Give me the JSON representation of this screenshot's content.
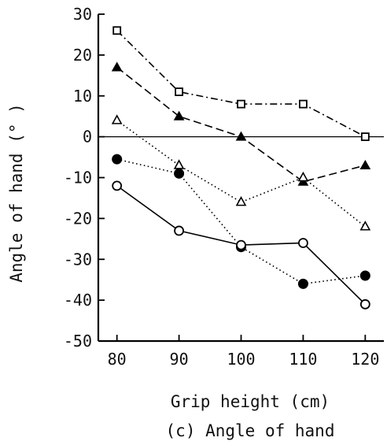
{
  "chart_data": {
    "type": "line",
    "title": "",
    "caption": "(c) Angle of hand",
    "xlabel": "Grip height (cm)",
    "ylabel": "Angle of hand (° )",
    "x": [
      80,
      90,
      100,
      110,
      120
    ],
    "x_tick_labels": [
      "80",
      "90",
      "100",
      "110",
      "120"
    ],
    "xlim": [
      77,
      123
    ],
    "ylim": [
      -50,
      30
    ],
    "y_ticks": [
      30,
      20,
      10,
      0,
      -10,
      -20,
      -30,
      -40,
      -50
    ],
    "y_tick_labels": [
      "30",
      "20",
      "10",
      "0",
      "-10",
      "-20",
      "-30",
      "-40",
      "-50"
    ],
    "reference_line": 0,
    "grid": false,
    "legend": "none",
    "series": [
      {
        "marker": "open-square",
        "line_style": "dash-dot",
        "values": [
          26,
          11,
          8,
          8,
          0
        ]
      },
      {
        "marker": "filled-triangle",
        "line_style": "dashed",
        "values": [
          17,
          5,
          0,
          -11,
          -7
        ]
      },
      {
        "marker": "open-triangle",
        "line_style": "dotted",
        "values": [
          4,
          -7,
          -16,
          -10,
          -22
        ]
      },
      {
        "marker": "filled-circle",
        "line_style": "dotted",
        "values": [
          -5.5,
          -9,
          -27,
          -36,
          -34
        ]
      },
      {
        "marker": "open-circle",
        "line_style": "solid",
        "values": [
          -12,
          -23,
          -26.5,
          -26,
          -41
        ]
      }
    ]
  }
}
